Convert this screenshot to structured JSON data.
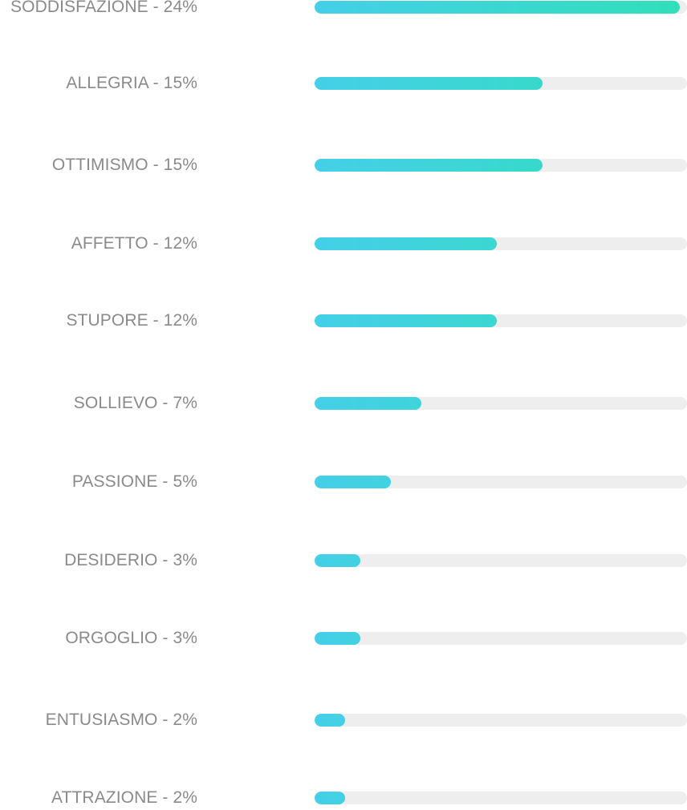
{
  "chart_data": {
    "type": "bar",
    "orientation": "horizontal",
    "max_value": 24.5,
    "items": [
      {
        "label": "SODDISFAZIONE - 24%",
        "value": 24
      },
      {
        "label": "ALLEGRIA - 15%",
        "value": 15
      },
      {
        "label": "OTTIMISMO - 15%",
        "value": 15
      },
      {
        "label": "AFFETTO - 12%",
        "value": 12
      },
      {
        "label": "STUPORE - 12%",
        "value": 12
      },
      {
        "label": "SOLLIEVO - 7%",
        "value": 7
      },
      {
        "label": "PASSIONE - 5%",
        "value": 5
      },
      {
        "label": "DESIDERIO - 3%",
        "value": 3
      },
      {
        "label": "ORGOGLIO - 3%",
        "value": 3
      },
      {
        "label": "ENTUSIASMO - 2%",
        "value": 2
      },
      {
        "label": "ATTRAZIONE - 2%",
        "value": 2
      }
    ],
    "colors": {
      "label": "#8a8a8a",
      "track": "#eeeeee",
      "gradient_start": "#45cfe8",
      "gradient_end": "#30dfb9"
    }
  }
}
